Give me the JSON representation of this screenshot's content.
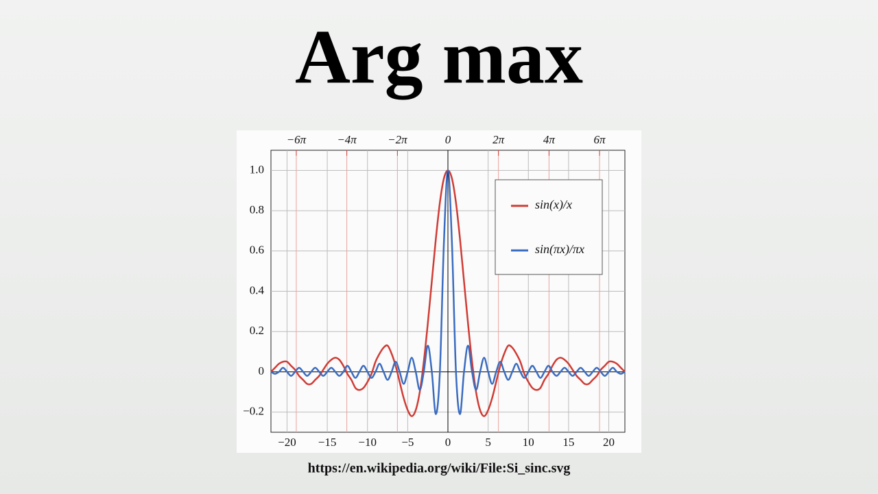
{
  "chart_data": {
    "type": "line",
    "title": "Arg max",
    "caption": "https://en.wikipedia.org/wiki/File:Si_sinc.svg",
    "x": [
      -22,
      -21.5,
      -21,
      -20.5,
      -20,
      -19.5,
      -19,
      -18.5,
      -18,
      -17.5,
      -17,
      -16.5,
      -16,
      -15.5,
      -15,
      -14.5,
      -14,
      -13.5,
      -13,
      -12.5,
      -12,
      -11.5,
      -11,
      -10.5,
      -10,
      -9.5,
      -9,
      -8.5,
      -8,
      -7.5,
      -7,
      -6.5,
      -6,
      -5.5,
      -5,
      -4.5,
      -4,
      -3.5,
      -3,
      -2.5,
      -2,
      -1.5,
      -1,
      -0.5,
      0,
      0.5,
      1,
      1.5,
      2,
      2.5,
      3,
      3.5,
      4,
      4.5,
      5,
      5.5,
      6,
      6.5,
      7,
      7.5,
      8,
      8.5,
      9,
      9.5,
      10,
      10.5,
      11,
      11.5,
      12,
      12.5,
      13,
      13.5,
      14,
      14.5,
      15,
      15.5,
      16,
      16.5,
      17,
      17.5,
      18,
      18.5,
      19,
      19.5,
      20,
      20.5,
      21,
      21.5,
      22
    ],
    "series": [
      {
        "name": "sin(x)/x",
        "color": "#d03b35",
        "values": [
          0,
          0.02,
          0.04,
          0.05,
          0.05,
          0.03,
          0.01,
          -0.02,
          -0.04,
          -0.06,
          -0.06,
          -0.04,
          -0.02,
          0.01,
          0.04,
          0.06,
          0.07,
          0.06,
          0.03,
          -0.01,
          -0.04,
          -0.08,
          -0.09,
          -0.08,
          -0.05,
          -0.01,
          0.05,
          0.09,
          0.12,
          0.13,
          0.09,
          0.03,
          -0.05,
          -0.13,
          -0.19,
          -0.22,
          -0.19,
          -0.1,
          0.05,
          0.24,
          0.45,
          0.66,
          0.84,
          0.96,
          1,
          0.96,
          0.84,
          0.66,
          0.45,
          0.24,
          0.05,
          -0.1,
          -0.19,
          -0.22,
          -0.19,
          -0.13,
          -0.05,
          0.03,
          0.09,
          0.13,
          0.12,
          0.09,
          0.05,
          -0.01,
          -0.05,
          -0.08,
          -0.09,
          -0.08,
          -0.04,
          -0.01,
          0.03,
          0.06,
          0.07,
          0.06,
          0.04,
          0.01,
          -0.02,
          -0.04,
          -0.06,
          -0.06,
          -0.04,
          -0.02,
          0.01,
          0.03,
          0.05,
          0.05,
          0.04,
          0.02,
          0
        ]
      },
      {
        "name": "sin(πx)/πx",
        "color": "#3a6bc0",
        "values": [
          0,
          -0.01,
          0,
          0.02,
          0,
          -0.02,
          0,
          0.02,
          0,
          -0.02,
          0,
          0.02,
          0,
          -0.02,
          0,
          0.02,
          0,
          -0.02,
          0,
          0.03,
          0,
          -0.03,
          0,
          0.03,
          0,
          -0.03,
          0,
          0.04,
          0,
          -0.04,
          0,
          0.05,
          0,
          -0.06,
          0,
          0.07,
          0,
          -0.09,
          0,
          0.13,
          0,
          -0.21,
          0,
          0.64,
          1,
          0.64,
          0,
          -0.21,
          0,
          0.13,
          0,
          -0.09,
          0,
          0.07,
          0,
          -0.06,
          0,
          0.05,
          0,
          -0.04,
          0,
          0.04,
          0,
          -0.03,
          0,
          0.03,
          0,
          -0.03,
          0,
          0.03,
          0,
          -0.02,
          0,
          0.02,
          0,
          -0.02,
          0,
          0.02,
          0,
          -0.02,
          0,
          0.02,
          0,
          -0.02,
          0,
          0.02,
          0,
          -0.01,
          0
        ]
      }
    ],
    "xlim": [
      -22,
      22
    ],
    "ylim": [
      -0.3,
      1.1
    ],
    "xticks": [
      {
        "value": -20,
        "label": "−20"
      },
      {
        "value": -15,
        "label": "−15"
      },
      {
        "value": -10,
        "label": "−10"
      },
      {
        "value": -5,
        "label": "−5"
      },
      0,
      5,
      10,
      15,
      20
    ],
    "x2ticks": [
      {
        "value": -18.85,
        "label": "−6π"
      },
      {
        "value": -12.57,
        "label": "−4π"
      },
      {
        "value": -6.28,
        "label": "−2π"
      },
      0,
      {
        "value": 6.28,
        "label": "2π"
      },
      {
        "value": 12.57,
        "label": "4π"
      },
      {
        "value": 18.85,
        "label": "6π"
      }
    ],
    "yticks": [
      {
        "value": -0.2,
        "label": "−0.2"
      },
      0,
      0.2,
      0.4,
      0.6,
      0.8,
      {
        "value": 1.0,
        "label": "1.0"
      }
    ],
    "grid": true,
    "legend": "upper right"
  }
}
